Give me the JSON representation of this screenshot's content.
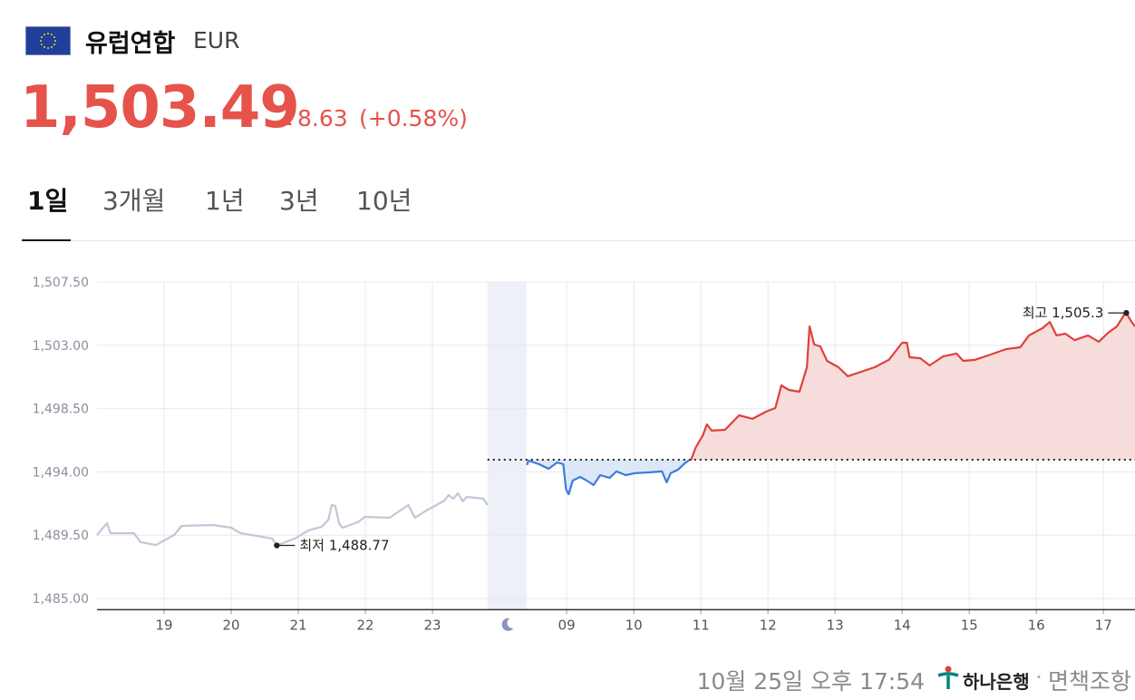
{
  "header": {
    "name": "유럽연합",
    "code": "EUR",
    "price": "1,503.49",
    "change": "8.63",
    "change_pct": "(+0.58%)"
  },
  "tabs": [
    "1일",
    "3개월",
    "1년",
    "3년",
    "10년"
  ],
  "chart_data": {
    "type": "line",
    "xlim": [
      18,
      33.47
    ],
    "xticks": [
      {
        "value": 19,
        "label": "19"
      },
      {
        "value": 20,
        "label": "20"
      },
      {
        "value": 21,
        "label": "21"
      },
      {
        "value": 22,
        "label": "22"
      },
      {
        "value": 23,
        "label": "23"
      },
      {
        "value": 25,
        "label": "09"
      },
      {
        "value": 26,
        "label": "10"
      },
      {
        "value": 27,
        "label": "11"
      },
      {
        "value": 28,
        "label": "12"
      },
      {
        "value": 29,
        "label": "13"
      },
      {
        "value": 30,
        "label": "14"
      },
      {
        "value": 31,
        "label": "15"
      },
      {
        "value": 32,
        "label": "16"
      },
      {
        "value": 33,
        "label": "17"
      }
    ],
    "ylim": [
      1484.2,
      1507.5
    ],
    "yticks": [
      {
        "value": 1485,
        "label": "1,485.00"
      },
      {
        "value": 1489.5,
        "label": "1,489.50"
      },
      {
        "value": 1494,
        "label": "1,494.00"
      },
      {
        "value": 1498.5,
        "label": "1,498.50"
      },
      {
        "value": 1503,
        "label": "1,503.00"
      },
      {
        "value": 1507.5,
        "label": "1,507.50"
      }
    ],
    "grid": true,
    "baseline": 1494.86,
    "night_band": [
      23.82,
      24.4
    ],
    "series": [
      {
        "color": "#c3c6d6",
        "fill": null,
        "x": [
          18.0,
          18.15,
          18.2,
          18.55,
          18.65,
          18.88,
          19.15,
          19.26,
          19.73,
          20.0,
          20.14,
          20.61,
          20.68,
          20.95,
          21.15,
          21.35,
          21.45,
          21.5,
          21.55,
          21.61,
          21.66,
          21.89,
          21.99,
          22.36,
          22.64,
          22.74,
          22.91,
          23.18,
          23.24,
          23.31,
          23.38,
          23.45,
          23.51,
          23.76,
          23.82
        ],
        "values": [
          1489.51,
          1490.35,
          1489.64,
          1489.64,
          1489.0,
          1488.8,
          1489.51,
          1490.16,
          1490.22,
          1490.03,
          1489.64,
          1489.26,
          1488.77,
          1489.26,
          1489.84,
          1490.09,
          1490.61,
          1491.64,
          1491.58,
          1490.29,
          1490.03,
          1490.42,
          1490.8,
          1490.74,
          1491.64,
          1490.74,
          1491.25,
          1491.96,
          1492.35,
          1492.09,
          1492.48,
          1491.9,
          1492.22,
          1492.09,
          1491.64
        ]
      },
      {
        "color": "#3b7ddd",
        "fill": "#dce8f8",
        "x": [
          24.41,
          24.43,
          24.59,
          24.73,
          24.86,
          24.95,
          24.99,
          25.03,
          25.09,
          25.2,
          25.3,
          25.4,
          25.5,
          25.64,
          25.74,
          25.88,
          26.01,
          26.22,
          26.42,
          26.49,
          26.55,
          26.66,
          26.76,
          26.82
        ],
        "values": [
          1494.48,
          1494.8,
          1494.54,
          1494.22,
          1494.67,
          1494.54,
          1492.74,
          1492.41,
          1493.38,
          1493.64,
          1493.38,
          1493.06,
          1493.77,
          1493.57,
          1494.03,
          1493.77,
          1493.9,
          1493.96,
          1494.03,
          1493.25,
          1493.9,
          1494.16,
          1494.61,
          1494.8
        ]
      },
      {
        "color": "#e0413c",
        "fill": "#f7dcdc",
        "x": [
          26.85,
          26.92,
          27.03,
          27.09,
          27.16,
          27.36,
          27.57,
          27.77,
          27.97,
          28.11,
          28.2,
          28.31,
          28.47,
          28.58,
          28.62,
          28.69,
          28.78,
          28.88,
          29.05,
          29.19,
          29.39,
          29.59,
          29.8,
          30.0,
          30.07,
          30.11,
          30.27,
          30.41,
          30.61,
          30.81,
          30.91,
          31.08,
          31.28,
          31.55,
          31.76,
          31.89,
          32.09,
          32.2,
          32.3,
          32.43,
          32.57,
          32.77,
          32.93,
          33.07,
          33.2,
          33.31,
          33.34,
          33.41,
          33.47
        ],
        "values": [
          1494.8,
          1495.7,
          1496.6,
          1497.38,
          1496.93,
          1496.99,
          1498.02,
          1497.77,
          1498.28,
          1498.54,
          1500.15,
          1499.83,
          1499.7,
          1501.44,
          1504.34,
          1503.05,
          1502.92,
          1501.89,
          1501.44,
          1500.8,
          1501.12,
          1501.44,
          1501.96,
          1503.18,
          1503.18,
          1502.15,
          1502.08,
          1501.57,
          1502.21,
          1502.41,
          1501.89,
          1501.96,
          1502.28,
          1502.73,
          1502.86,
          1503.7,
          1504.21,
          1504.66,
          1503.7,
          1503.83,
          1503.37,
          1503.7,
          1503.25,
          1503.89,
          1504.34,
          1505.18,
          1505.3,
          1504.73,
          1504.34
        ]
      }
    ],
    "annotations": [
      {
        "text": "최저 1,488.77",
        "x": 20.68,
        "y": 1488.77,
        "side": "right"
      },
      {
        "text": "최고 1,505.3",
        "x": 33.34,
        "y": 1505.3,
        "side": "left"
      }
    ]
  },
  "footer": {
    "timestamp": "10월 25일 오후 17:54",
    "bank": "하나은행",
    "separator": "·",
    "disclaimer": "면책조항"
  }
}
